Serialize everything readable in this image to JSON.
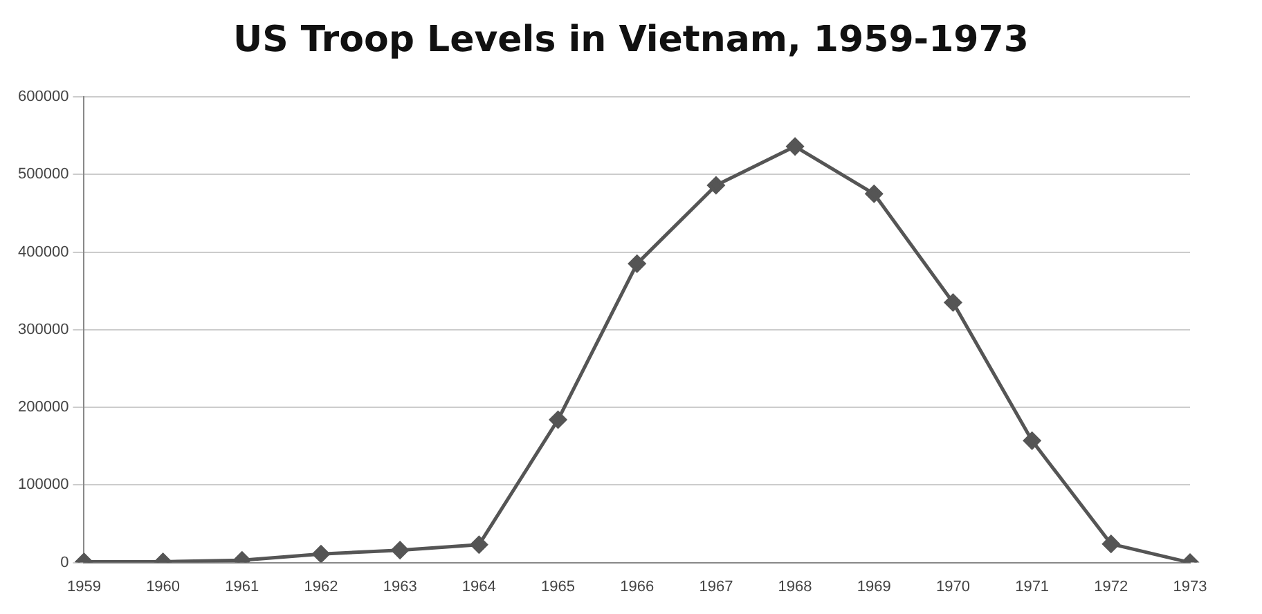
{
  "chart_data": {
    "type": "line",
    "title": "US Troop Levels in Vietnam, 1959-1973",
    "categories": [
      "1959",
      "1960",
      "1961",
      "1962",
      "1963",
      "1964",
      "1965",
      "1966",
      "1967",
      "1968",
      "1969",
      "1970",
      "1971",
      "1972",
      "1973"
    ],
    "series": [
      {
        "color": "#555555",
        "values": [
          1000,
          1000,
          3000,
          11000,
          16000,
          23000,
          184000,
          385000,
          486000,
          536000,
          475000,
          335000,
          157000,
          24000,
          0
        ]
      }
    ],
    "ylim": [
      0,
      600000
    ],
    "yticks": [
      0,
      100000,
      200000,
      300000,
      400000,
      500000,
      600000
    ],
    "grid": "y",
    "legend": false,
    "marker": "diamond",
    "line_style": "solid"
  }
}
